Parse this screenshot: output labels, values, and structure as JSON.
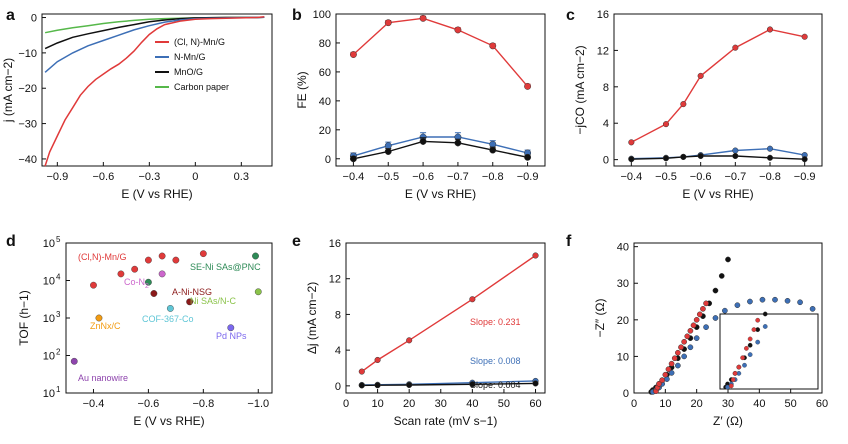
{
  "figure": {
    "colors": {
      "red": "#e03a3a",
      "blue": "#3d6fb6",
      "black": "#111111",
      "green": "#56b84a"
    }
  },
  "chart_data": [
    {
      "panel": "a",
      "type": "line",
      "xlabel": "E (V vs RHE)",
      "ylabel": "j (mA cm−2)",
      "xlim": [
        -1.0,
        0.5
      ],
      "ylim": [
        -42,
        1
      ],
      "xticks": [
        -0.9,
        -0.6,
        -0.3,
        0,
        0.3
      ],
      "xticklabels": [
        "−0.9",
        "−0.6",
        "−0.3",
        "0",
        "0.3"
      ],
      "yticks": [
        0,
        -10,
        -20,
        -30,
        -40
      ],
      "yticklabels": [
        "0",
        "−10",
        "−20",
        "−30",
        "−40"
      ],
      "legend": [
        "(Cl, N)-Mn/G",
        "N-Mn/G",
        "MnO/G",
        "Carbon paper"
      ],
      "series": [
        {
          "name": "(Cl, N)-Mn/G",
          "color": "#e03a3a",
          "x": [
            -0.98,
            -0.95,
            -0.9,
            -0.85,
            -0.8,
            -0.75,
            -0.7,
            -0.65,
            -0.6,
            -0.55,
            -0.5,
            -0.45,
            -0.4,
            -0.35,
            -0.3,
            -0.25,
            -0.2,
            -0.1,
            0,
            0.1,
            0.2,
            0.3,
            0.4,
            0.45
          ],
          "y": [
            -42,
            -38,
            -33.5,
            -29,
            -25.5,
            -22,
            -19.5,
            -17.5,
            -16,
            -14.5,
            -13.2,
            -11.5,
            -9.5,
            -7,
            -4.8,
            -3.2,
            -2,
            -1,
            -0.5,
            -0.3,
            -0.2,
            -0.1,
            0,
            0.2
          ]
        },
        {
          "name": "N-Mn/G",
          "color": "#3d6fb6",
          "x": [
            -0.98,
            -0.9,
            -0.8,
            -0.7,
            -0.6,
            -0.5,
            -0.4,
            -0.3,
            -0.2,
            -0.1,
            0,
            0.2,
            0.4,
            0.45
          ],
          "y": [
            -15.5,
            -12.5,
            -10,
            -8,
            -6.5,
            -5,
            -3.5,
            -2.3,
            -1.3,
            -0.7,
            -0.3,
            -0.1,
            0,
            0.1
          ]
        },
        {
          "name": "MnO/G",
          "color": "#111111",
          "x": [
            -0.98,
            -0.9,
            -0.8,
            -0.7,
            -0.6,
            -0.5,
            -0.4,
            -0.3,
            -0.2,
            -0.1,
            0,
            0.2,
            0.4,
            0.45
          ],
          "y": [
            -8.8,
            -7.2,
            -5.6,
            -4.6,
            -3.7,
            -2.8,
            -2,
            -1.2,
            -0.7,
            -0.3,
            -0.1,
            0,
            0,
            0.1
          ]
        },
        {
          "name": "Carbon paper",
          "color": "#56b84a",
          "x": [
            -0.98,
            -0.9,
            -0.8,
            -0.7,
            -0.6,
            -0.5,
            -0.4,
            -0.3,
            -0.2,
            0,
            0.2,
            0.4,
            0.45
          ],
          "y": [
            -4.3,
            -3.6,
            -2.9,
            -2.3,
            -1.7,
            -1.2,
            -0.8,
            -0.5,
            -0.3,
            -0.1,
            0,
            0,
            0.1
          ]
        }
      ]
    },
    {
      "panel": "b",
      "type": "line",
      "xlabel": "E (V vs RHE)",
      "ylabel": "FE (%)",
      "xlim": [
        -0.35,
        -0.95
      ],
      "ylim": [
        -5,
        100
      ],
      "xticks": [
        -0.4,
        -0.5,
        -0.6,
        -0.7,
        -0.8,
        -0.9
      ],
      "xticklabels": [
        "−0.4",
        "−0.5",
        "−0.6",
        "−0.7",
        "−0.8",
        "−0.9"
      ],
      "yticks": [
        0,
        20,
        40,
        60,
        80,
        100
      ],
      "yticklabels": [
        "0",
        "20",
        "40",
        "60",
        "80",
        "100"
      ],
      "series": [
        {
          "name": "(Cl, N)-Mn/G",
          "color": "#e03a3a",
          "x": [
            -0.4,
            -0.5,
            -0.6,
            -0.7,
            -0.8,
            -0.9
          ],
          "y": [
            72,
            94,
            97,
            89,
            78,
            50
          ],
          "err": [
            1.5,
            1.5,
            1.5,
            1.5,
            1.5,
            1.5
          ]
        },
        {
          "name": "N-Mn/G",
          "color": "#3d6fb6",
          "x": [
            -0.4,
            -0.5,
            -0.6,
            -0.7,
            -0.8,
            -0.9
          ],
          "y": [
            2,
            9,
            15,
            15,
            10,
            4
          ],
          "err": [
            2,
            2.5,
            3,
            3,
            2.5,
            2
          ]
        },
        {
          "name": "MnO/G",
          "color": "#111111",
          "x": [
            -0.4,
            -0.5,
            -0.6,
            -0.7,
            -0.8,
            -0.9
          ],
          "y": [
            0,
            5,
            12,
            11,
            6,
            1
          ],
          "err": [
            1.5,
            2,
            2.5,
            2.5,
            2,
            1.5
          ]
        }
      ]
    },
    {
      "panel": "c",
      "type": "line",
      "xlabel": "E (V vs RHE)",
      "ylabel": "−jCO (mA cm−2)",
      "xlim": [
        -0.35,
        -0.95
      ],
      "ylim": [
        -0.7,
        16
      ],
      "xticks": [
        -0.4,
        -0.5,
        -0.6,
        -0.7,
        -0.8,
        -0.9
      ],
      "xticklabels": [
        "−0.4",
        "−0.5",
        "−0.6",
        "−0.7",
        "−0.8",
        "−0.9"
      ],
      "yticks": [
        0,
        4,
        8,
        12,
        16
      ],
      "yticklabels": [
        "0",
        "4",
        "8",
        "12",
        "16"
      ],
      "series": [
        {
          "name": "(Cl, N)-Mn/G",
          "color": "#e03a3a",
          "x": [
            -0.4,
            -0.5,
            -0.55,
            -0.6,
            -0.7,
            -0.8,
            -0.9
          ],
          "y": [
            1.9,
            3.9,
            6.1,
            9.2,
            12.3,
            14.3,
            13.5
          ]
        },
        {
          "name": "N-Mn/G",
          "color": "#3d6fb6",
          "x": [
            -0.4,
            -0.5,
            -0.55,
            -0.6,
            -0.7,
            -0.8,
            -0.9
          ],
          "y": [
            0.1,
            0.2,
            0.3,
            0.5,
            1.0,
            1.2,
            0.5
          ]
        },
        {
          "name": "MnO/G",
          "color": "#111111",
          "x": [
            -0.4,
            -0.5,
            -0.55,
            -0.6,
            -0.7,
            -0.8,
            -0.9
          ],
          "y": [
            0.05,
            0.15,
            0.3,
            0.4,
            0.4,
            0.2,
            0.05
          ]
        }
      ]
    },
    {
      "panel": "d",
      "type": "scatter",
      "xlabel": "E (V vs RHE)",
      "ylabel": "TOF (h−1)",
      "yscale": "log",
      "xlim": [
        -0.3,
        -1.05
      ],
      "ylim": [
        10,
        100000
      ],
      "xticks": [
        -0.4,
        -0.6,
        -0.8,
        -1.0
      ],
      "xticklabels": [
        "−0.4",
        "−0.6",
        "−0.8",
        "−1.0"
      ],
      "yticks": [
        10,
        100,
        1000,
        10000,
        100000
      ],
      "yticklabels": [
        "10",
        "10",
        "10",
        "10",
        "10"
      ],
      "ytickexponents": [
        "1",
        "2",
        "3",
        "4",
        "5"
      ],
      "points": [
        {
          "x": -0.4,
          "y": 7500,
          "color": "#e03a3a"
        },
        {
          "x": -0.5,
          "y": 15000,
          "color": "#e03a3a"
        },
        {
          "x": -0.55,
          "y": 20000,
          "color": "#e03a3a"
        },
        {
          "x": -0.6,
          "y": 35000,
          "color": "#e03a3a"
        },
        {
          "x": -0.65,
          "y": 45000,
          "color": "#e03a3a"
        },
        {
          "x": -0.8,
          "y": 52000,
          "color": "#e03a3a"
        },
        {
          "x": -0.7,
          "y": 35000,
          "color": "#e03a3a"
        },
        {
          "x": -0.6,
          "y": 9000,
          "color": "#2e8b57"
        },
        {
          "x": -0.99,
          "y": 45000,
          "color": "#2e8b57"
        },
        {
          "x": -0.65,
          "y": 15000,
          "color": "#cc66cc"
        },
        {
          "x": -0.62,
          "y": 4500,
          "color": "#8b1a1a"
        },
        {
          "x": -0.75,
          "y": 2700,
          "color": "#8b1a1a"
        },
        {
          "x": -1.0,
          "y": 5000,
          "color": "#8bc34a"
        },
        {
          "x": -0.42,
          "y": 1000,
          "color": "#f39c12"
        },
        {
          "x": -0.68,
          "y": 1800,
          "color": "#5fc6d6"
        },
        {
          "x": -0.9,
          "y": 550,
          "color": "#7b68ee"
        },
        {
          "x": -0.33,
          "y": 70,
          "color": "#8e44ad"
        }
      ],
      "annotations": [
        {
          "text": "(Cl,N)-Mn/G",
          "color": "#e03a3a"
        },
        {
          "text": "SE-Ni SAs@PNC",
          "color": "#2e8b57"
        },
        {
          "text": "Co-N",
          "sub": "2",
          "color": "#cc66cc"
        },
        {
          "text": "A-Ni-NSG",
          "color": "#8b1a1a"
        },
        {
          "text": "Ni SAs/N-C",
          "color": "#8bc34a"
        },
        {
          "text": "ZnNx/C",
          "color": "#f39c12"
        },
        {
          "text": "COF-367-Co",
          "color": "#5fc6d6"
        },
        {
          "text": "Pd NPs",
          "color": "#7b68ee"
        },
        {
          "text": "Au nanowire",
          "color": "#8e44ad"
        }
      ]
    },
    {
      "panel": "e",
      "type": "line",
      "xlabel": "Scan rate (mV s−1)",
      "ylabel": "Δj (mA cm−2)",
      "xlim": [
        0,
        63
      ],
      "ylim": [
        -0.8,
        16
      ],
      "xticks": [
        0,
        10,
        20,
        30,
        40,
        50,
        60
      ],
      "xticklabels": [
        "0",
        "10",
        "20",
        "30",
        "40",
        "50",
        "60"
      ],
      "yticks": [
        0,
        4,
        8,
        12,
        16
      ],
      "yticklabels": [
        "0",
        "4",
        "8",
        "12",
        "16"
      ],
      "series": [
        {
          "name": "(Cl, N)-Mn/G",
          "color": "#e03a3a",
          "x": [
            5,
            10,
            20,
            40,
            60
          ],
          "y": [
            1.6,
            2.9,
            5.1,
            9.7,
            14.6
          ]
        },
        {
          "name": "N-Mn/G",
          "color": "#3d6fb6",
          "x": [
            5,
            10,
            20,
            40,
            60
          ],
          "y": [
            0.1,
            0.12,
            0.18,
            0.35,
            0.55
          ]
        },
        {
          "name": "MnO/G",
          "color": "#111111",
          "x": [
            5,
            10,
            20,
            40,
            60
          ],
          "y": [
            0.05,
            0.07,
            0.1,
            0.18,
            0.27
          ]
        }
      ],
      "annotations": [
        {
          "text": "Slope: 0.231",
          "color": "#e03a3a"
        },
        {
          "text": "Slope: 0.008",
          "color": "#3d6fb6"
        },
        {
          "text": "Slope: 0.004",
          "color": "#111111"
        }
      ]
    },
    {
      "panel": "f",
      "type": "scatter",
      "xlabel": "Z′ (Ω)",
      "ylabel": "−Z″ (Ω)",
      "xlim": [
        0,
        60
      ],
      "ylim": [
        0,
        41
      ],
      "xticks": [
        0,
        10,
        20,
        30,
        40,
        50,
        60
      ],
      "xticklabels": [
        "0",
        "10",
        "20",
        "30",
        "40",
        "50",
        "60"
      ],
      "yticks": [
        0,
        10,
        20,
        30,
        40
      ],
      "yticklabels": [
        "0",
        "10",
        "20",
        "30",
        "40"
      ],
      "series": [
        {
          "name": "MnO/G",
          "color": "#111111",
          "x": [
            5.5,
            6,
            7,
            8,
            9,
            10.5,
            12,
            14,
            16,
            18,
            20,
            22,
            24,
            26,
            28,
            30
          ],
          "y": [
            0.3,
            0.8,
            1.5,
            2.5,
            3.5,
            5,
            7,
            9.5,
            12,
            15,
            18,
            21,
            24.5,
            28,
            32,
            36.5
          ]
        },
        {
          "name": "N-Mn/G",
          "color": "#3d6fb6",
          "x": [
            6,
            7,
            8,
            9,
            10.5,
            12,
            14,
            16,
            18,
            20,
            23,
            26,
            29,
            33,
            37,
            41,
            45,
            49,
            53,
            57
          ],
          "y": [
            0.3,
            0.8,
            1.5,
            2.5,
            3.8,
            5.5,
            7.5,
            10,
            12.5,
            15,
            18,
            20.5,
            22.5,
            24,
            25,
            25.5,
            25.5,
            25.2,
            24.8,
            23
          ]
        },
        {
          "name": "(Cl, N)-Mn/G",
          "color": "#e03a3a",
          "x": [
            7,
            7.5,
            8,
            9,
            10,
            11,
            12,
            13,
            14,
            15,
            16,
            17,
            18,
            19,
            20,
            21,
            22,
            23
          ],
          "y": [
            0.5,
            1.5,
            2.5,
            3.5,
            5,
            6.5,
            8,
            9.5,
            11,
            12.5,
            14,
            15.5,
            17,
            18.5,
            20,
            21.5,
            23,
            24.5
          ]
        }
      ]
    }
  ]
}
